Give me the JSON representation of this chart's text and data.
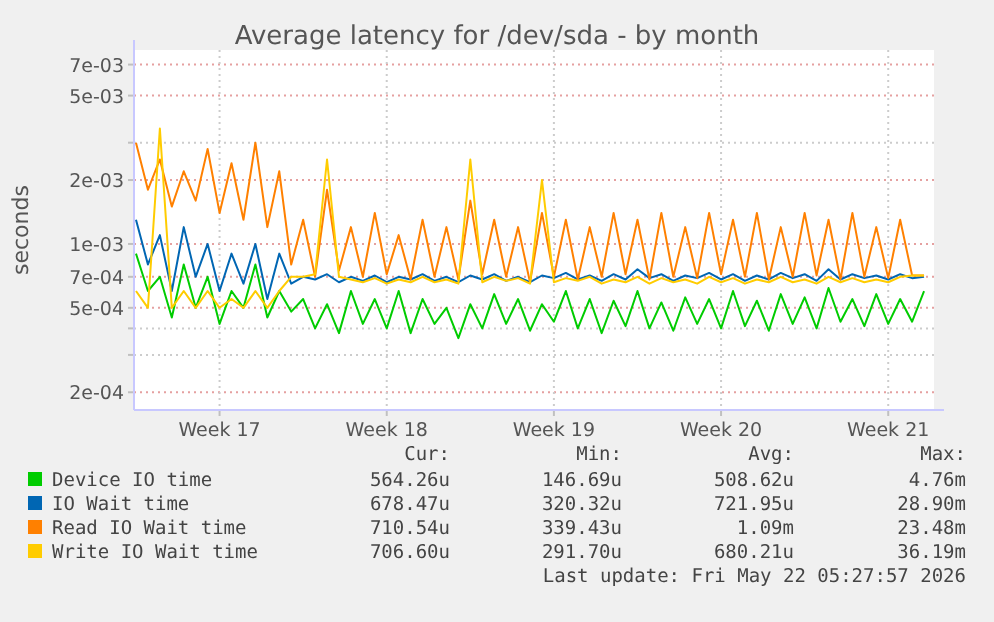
{
  "chart_data": {
    "type": "line",
    "title": "Average latency for /dev/sda - by month",
    "ylabel": "seconds",
    "log": "y",
    "grid": true,
    "legend": "bottom",
    "line_style": "solid",
    "xlim": [
      "2026-04-19T22:00",
      "2026-05-23T10:00"
    ],
    "xticks": [
      {
        "value": "2026-04-23T12:00",
        "label": "Week 17"
      },
      {
        "value": "2026-04-30T12:00",
        "label": "Week 18"
      },
      {
        "value": "2026-05-07T12:00",
        "label": "Week 19"
      },
      {
        "value": "2026-05-14T12:00",
        "label": "Week 20"
      },
      {
        "value": "2026-05-21T12:00",
        "label": "Week 21"
      }
    ],
    "ylim": [
      0.000165,
      0.0082
    ],
    "yticks": [
      {
        "value": 0.0002,
        "label": "2e-04"
      },
      {
        "value": 0.0003,
        "label": null
      },
      {
        "value": 0.0004,
        "label": null
      },
      {
        "value": 0.0005,
        "label": "5e-04"
      },
      {
        "value": 0.0007,
        "label": "7e-04"
      },
      {
        "value": 0.001,
        "label": "1e-03"
      },
      {
        "value": 0.002,
        "label": "2e-03"
      },
      {
        "value": 0.003,
        "label": null
      },
      {
        "value": 0.005,
        "label": "5e-03"
      },
      {
        "value": 0.007,
        "label": "7e-03"
      }
    ],
    "x": [
      "2026-04-20T00:00",
      "2026-04-20T12:00",
      "2026-04-21T00:00",
      "2026-04-21T12:00",
      "2026-04-22T00:00",
      "2026-04-22T12:00",
      "2026-04-23T00:00",
      "2026-04-23T12:00",
      "2026-04-24T00:00",
      "2026-04-24T12:00",
      "2026-04-25T00:00",
      "2026-04-25T12:00",
      "2026-04-26T00:00",
      "2026-04-26T12:00",
      "2026-04-27T00:00",
      "2026-04-27T12:00",
      "2026-04-28T00:00",
      "2026-04-28T12:00",
      "2026-04-29T00:00",
      "2026-04-29T12:00",
      "2026-04-30T00:00",
      "2026-04-30T12:00",
      "2026-05-01T00:00",
      "2026-05-01T12:00",
      "2026-05-02T00:00",
      "2026-05-02T12:00",
      "2026-05-03T00:00",
      "2026-05-03T12:00",
      "2026-05-04T00:00",
      "2026-05-04T12:00",
      "2026-05-05T00:00",
      "2026-05-05T12:00",
      "2026-05-06T00:00",
      "2026-05-06T12:00",
      "2026-05-07T00:00",
      "2026-05-07T12:00",
      "2026-05-08T00:00",
      "2026-05-08T12:00",
      "2026-05-09T00:00",
      "2026-05-09T12:00",
      "2026-05-10T00:00",
      "2026-05-10T12:00",
      "2026-05-11T00:00",
      "2026-05-11T12:00",
      "2026-05-12T00:00",
      "2026-05-12T12:00",
      "2026-05-13T00:00",
      "2026-05-13T12:00",
      "2026-05-14T00:00",
      "2026-05-14T12:00",
      "2026-05-15T00:00",
      "2026-05-15T12:00",
      "2026-05-16T00:00",
      "2026-05-16T12:00",
      "2026-05-17T00:00",
      "2026-05-17T12:00",
      "2026-05-18T00:00",
      "2026-05-18T12:00",
      "2026-05-19T00:00",
      "2026-05-19T12:00",
      "2026-05-20T00:00",
      "2026-05-20T12:00",
      "2026-05-21T00:00",
      "2026-05-21T12:00",
      "2026-05-22T00:00",
      "2026-05-22T12:00",
      "2026-05-23T00:00"
    ],
    "series": [
      {
        "name": "Device IO time",
        "color": "#00cc00",
        "values": [
          0.0009,
          0.0006,
          0.0007,
          0.00045,
          0.0008,
          0.0005,
          0.0007,
          0.00042,
          0.0006,
          0.0005,
          0.0008,
          0.00045,
          0.0006,
          0.00048,
          0.00055,
          0.0004,
          0.00052,
          0.00038,
          0.0006,
          0.00042,
          0.00055,
          0.0004,
          0.0006,
          0.00038,
          0.00055,
          0.00042,
          0.0005,
          0.00036,
          0.00052,
          0.0004,
          0.00058,
          0.00042,
          0.00055,
          0.00039,
          0.00052,
          0.00043,
          0.0006,
          0.0004,
          0.00055,
          0.00038,
          0.00054,
          0.00041,
          0.0006,
          0.0004,
          0.00053,
          0.00039,
          0.00056,
          0.00042,
          0.00055,
          0.0004,
          0.0006,
          0.00041,
          0.00054,
          0.00039,
          0.00058,
          0.00042,
          0.00056,
          0.0004,
          0.00062,
          0.00043,
          0.00055,
          0.00041,
          0.00058,
          0.00042,
          0.00055,
          0.00043,
          0.0006
        ]
      },
      {
        "name": "IO Wait time",
        "color": "#0066b3",
        "values": [
          0.0013,
          0.0008,
          0.0011,
          0.0006,
          0.0012,
          0.0007,
          0.001,
          0.0006,
          0.0009,
          0.00065,
          0.001,
          0.00055,
          0.0009,
          0.00065,
          0.0007,
          0.00068,
          0.00072,
          0.00066,
          0.0007,
          0.00067,
          0.00071,
          0.00066,
          0.0007,
          0.00068,
          0.00072,
          0.00067,
          0.0007,
          0.00066,
          0.00071,
          0.00068,
          0.00072,
          0.00067,
          0.0007,
          0.00066,
          0.00071,
          0.00069,
          0.00073,
          0.00068,
          0.00071,
          0.00067,
          0.00072,
          0.00068,
          0.00076,
          0.00069,
          0.00072,
          0.00067,
          0.00071,
          0.00069,
          0.00073,
          0.00068,
          0.00072,
          0.00067,
          0.00071,
          0.00068,
          0.00073,
          0.00069,
          0.00072,
          0.00067,
          0.00076,
          0.00068,
          0.00072,
          0.00069,
          0.00071,
          0.00068,
          0.00072,
          0.00069,
          0.0007
        ]
      },
      {
        "name": "Read IO Wait time",
        "color": "#ff8000",
        "values": [
          0.003,
          0.0018,
          0.0025,
          0.0015,
          0.0022,
          0.0016,
          0.0028,
          0.0014,
          0.0024,
          0.0013,
          0.003,
          0.0012,
          0.0022,
          0.0008,
          0.0013,
          0.0007,
          0.0018,
          0.00075,
          0.0012,
          0.0007,
          0.0014,
          0.00072,
          0.0011,
          0.00068,
          0.0013,
          0.0007,
          0.0012,
          0.00068,
          0.0016,
          0.00072,
          0.0013,
          0.0007,
          0.0012,
          0.00066,
          0.0014,
          0.0007,
          0.0013,
          0.00068,
          0.0012,
          0.0007,
          0.0014,
          0.00072,
          0.0013,
          0.00068,
          0.0014,
          0.0007,
          0.0012,
          0.00069,
          0.0014,
          0.00072,
          0.0013,
          0.0007,
          0.0014,
          0.00068,
          0.0012,
          0.0007,
          0.0014,
          0.00071,
          0.0013,
          0.00068,
          0.0014,
          0.0007,
          0.0012,
          0.00069,
          0.0013,
          0.00071,
          0.00071
        ]
      },
      {
        "name": "Write IO Wait time",
        "color": "#ffcc00",
        "values": [
          0.0006,
          0.0005,
          0.0035,
          0.0005,
          0.0006,
          0.0005,
          0.0006,
          0.0005,
          0.00055,
          0.0005,
          0.0006,
          0.0005,
          0.0006,
          0.0007,
          0.0007,
          0.00072,
          0.0025,
          0.0007,
          0.00068,
          0.00066,
          0.00069,
          0.00065,
          0.00068,
          0.00066,
          0.0007,
          0.00066,
          0.00068,
          0.00065,
          0.0025,
          0.00066,
          0.0007,
          0.00067,
          0.00069,
          0.00065,
          0.002,
          0.00066,
          0.00069,
          0.00067,
          0.0007,
          0.00065,
          0.00068,
          0.00066,
          0.0007,
          0.00065,
          0.00069,
          0.00066,
          0.00068,
          0.00065,
          0.0007,
          0.00066,
          0.00069,
          0.00065,
          0.00068,
          0.00066,
          0.0007,
          0.00066,
          0.00068,
          0.00065,
          0.0007,
          0.00066,
          0.00069,
          0.00066,
          0.00068,
          0.00066,
          0.0007,
          0.00071,
          0.00071
        ]
      }
    ],
    "annotations": [
      "Cur:",
      "Min:",
      "Avg:",
      "Max:",
      "564.26u",
      "146.69u",
      "508.62u",
      "4.76m",
      "678.47u",
      "320.32u",
      "721.95u",
      "28.90m",
      "710.54u",
      "339.43u",
      "1.09m",
      "23.48m",
      "706.60u",
      "291.70u",
      "680.21u",
      "36.19m",
      "Last update: Fri May 22 05:27:57 2026"
    ]
  }
}
